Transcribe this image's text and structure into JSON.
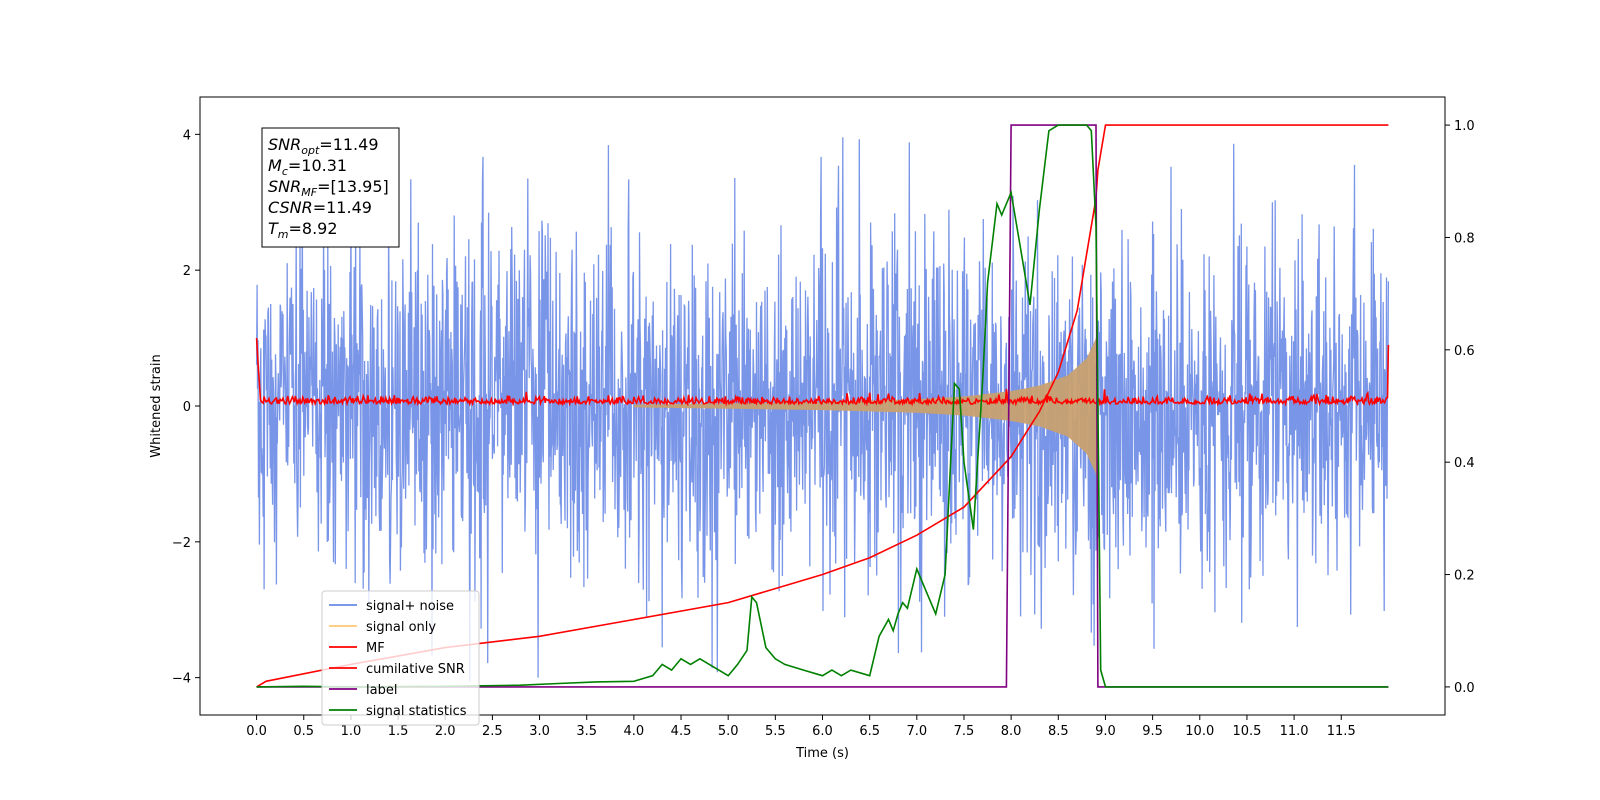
{
  "chart_data": {
    "type": "line",
    "xlabel": "Time (s)",
    "ylabel": "Whitened strain",
    "xlim": [
      -0.6,
      12.6
    ],
    "ylim": [
      -4.55,
      4.55
    ],
    "y2lim": [
      -0.05,
      1.05
    ],
    "x_ticks": [
      "0.0",
      "0.5",
      "1.0",
      "1.5",
      "2.0",
      "2.5",
      "3.0",
      "3.5",
      "4.0",
      "4.5",
      "5.0",
      "5.5",
      "6.0",
      "6.5",
      "7.0",
      "7.5",
      "8.0",
      "8.5",
      "9.0",
      "9.5",
      "10.0",
      "10.5",
      "11.0",
      "11.5"
    ],
    "y_ticks": [
      "4",
      "2",
      "0",
      "−2",
      "−4"
    ],
    "y_tick_values": [
      4,
      2,
      0,
      -2,
      -4
    ],
    "y2_ticks": [
      "1.0",
      "0.8",
      "0.6",
      "0.4",
      "0.2",
      "0.0"
    ],
    "y2_tick_values": [
      1.0,
      0.8,
      0.6,
      0.4,
      0.2,
      0.0
    ],
    "annotation": {
      "lines": [
        {
          "sym": "SNR",
          "sub": "opt",
          "value": "=11.49"
        },
        {
          "sym": "M",
          "sub": "c",
          "value": "=10.31"
        },
        {
          "sym": "SNR",
          "sub": "MF",
          "value": "=[13.95]"
        },
        {
          "sym": "CSNR",
          "sub": "",
          "value": "=11.49"
        },
        {
          "sym": "T",
          "sub": "m",
          "value": "=8.92"
        }
      ]
    },
    "legend": {
      "placement": "lower-left",
      "entries": [
        {
          "name": "signal+ noise",
          "color": "#6a8ae5"
        },
        {
          "name": "signal only",
          "color": "#ffc875"
        },
        {
          "name": "MF",
          "color": "#ff0000"
        },
        {
          "name": "cumilative SNR",
          "color": "#ff0000"
        },
        {
          "name": "label",
          "color": "#800080"
        },
        {
          "name": "signal statistics",
          "color": "#008000"
        }
      ]
    },
    "series": [
      {
        "name": "signal+ noise",
        "axis": "left",
        "color": "#6a8ae5",
        "description_values": {
          "x_range": [
            0.0,
            12.0
          ],
          "mean": 0.0,
          "std": 1.0,
          "min": -4.15,
          "max": 4.1
        }
      },
      {
        "name": "signal only",
        "axis": "left",
        "color": "#c8a070",
        "envelope": {
          "x": [
            4.0,
            6.0,
            7.0,
            7.5,
            8.0,
            8.3,
            8.6,
            8.8,
            8.9,
            8.92
          ],
          "amplitude": [
            0.02,
            0.06,
            0.1,
            0.14,
            0.22,
            0.3,
            0.45,
            0.7,
            1.0,
            1.2
          ]
        }
      },
      {
        "name": "MF",
        "axis": "left",
        "color": "#ff0000",
        "description_values": {
          "x_range": [
            0.0,
            12.0
          ],
          "mean": 0.05,
          "std": 0.06,
          "edge_value": 1.0
        }
      },
      {
        "name": "cumilative SNR",
        "axis": "right",
        "color": "#ff0000",
        "x": [
          0.0,
          0.1,
          1.0,
          2.0,
          3.0,
          4.0,
          5.0,
          6.0,
          6.5,
          7.0,
          7.5,
          8.0,
          8.3,
          8.5,
          8.7,
          8.8,
          8.9,
          8.92,
          9.0,
          12.0
        ],
        "y": [
          0.0,
          0.01,
          0.04,
          0.07,
          0.09,
          0.12,
          0.15,
          0.2,
          0.23,
          0.27,
          0.32,
          0.41,
          0.49,
          0.56,
          0.67,
          0.77,
          0.87,
          0.92,
          1.0,
          1.0
        ]
      },
      {
        "name": "label",
        "axis": "right",
        "color": "#800080",
        "x": [
          0.0,
          7.95,
          8.0,
          8.9,
          8.92,
          12.0
        ],
        "y": [
          0.0,
          0.0,
          1.0,
          1.0,
          0.0,
          0.0
        ]
      },
      {
        "name": "signal statistics",
        "axis": "right",
        "color": "#008000",
        "x": [
          0.0,
          0.5,
          1.0,
          2.0,
          2.8,
          3.2,
          3.6,
          4.0,
          4.2,
          4.3,
          4.4,
          4.5,
          4.6,
          4.7,
          4.8,
          4.9,
          5.0,
          5.1,
          5.2,
          5.25,
          5.3,
          5.4,
          5.5,
          5.6,
          5.8,
          6.0,
          6.1,
          6.2,
          6.3,
          6.5,
          6.6,
          6.7,
          6.75,
          6.8,
          6.85,
          6.9,
          7.0,
          7.1,
          7.2,
          7.3,
          7.4,
          7.45,
          7.5,
          7.6,
          7.7,
          7.75,
          7.85,
          7.9,
          8.0,
          8.1,
          8.2,
          8.3,
          8.4,
          8.5,
          8.6,
          8.7,
          8.8,
          8.85,
          8.9,
          8.95,
          9.0,
          9.5,
          12.0
        ],
        "y": [
          0.0,
          0.001,
          0.0,
          0.001,
          0.003,
          0.006,
          0.009,
          0.01,
          0.02,
          0.04,
          0.03,
          0.05,
          0.04,
          0.05,
          0.04,
          0.03,
          0.02,
          0.04,
          0.065,
          0.16,
          0.15,
          0.07,
          0.05,
          0.04,
          0.03,
          0.02,
          0.03,
          0.02,
          0.03,
          0.02,
          0.09,
          0.12,
          0.1,
          0.13,
          0.15,
          0.14,
          0.21,
          0.17,
          0.13,
          0.2,
          0.54,
          0.53,
          0.4,
          0.28,
          0.55,
          0.72,
          0.86,
          0.84,
          0.88,
          0.78,
          0.68,
          0.85,
          0.99,
          1.0,
          1.0,
          1.0,
          1.0,
          0.99,
          0.82,
          0.03,
          0.0,
          0.0,
          0.0
        ]
      }
    ]
  }
}
